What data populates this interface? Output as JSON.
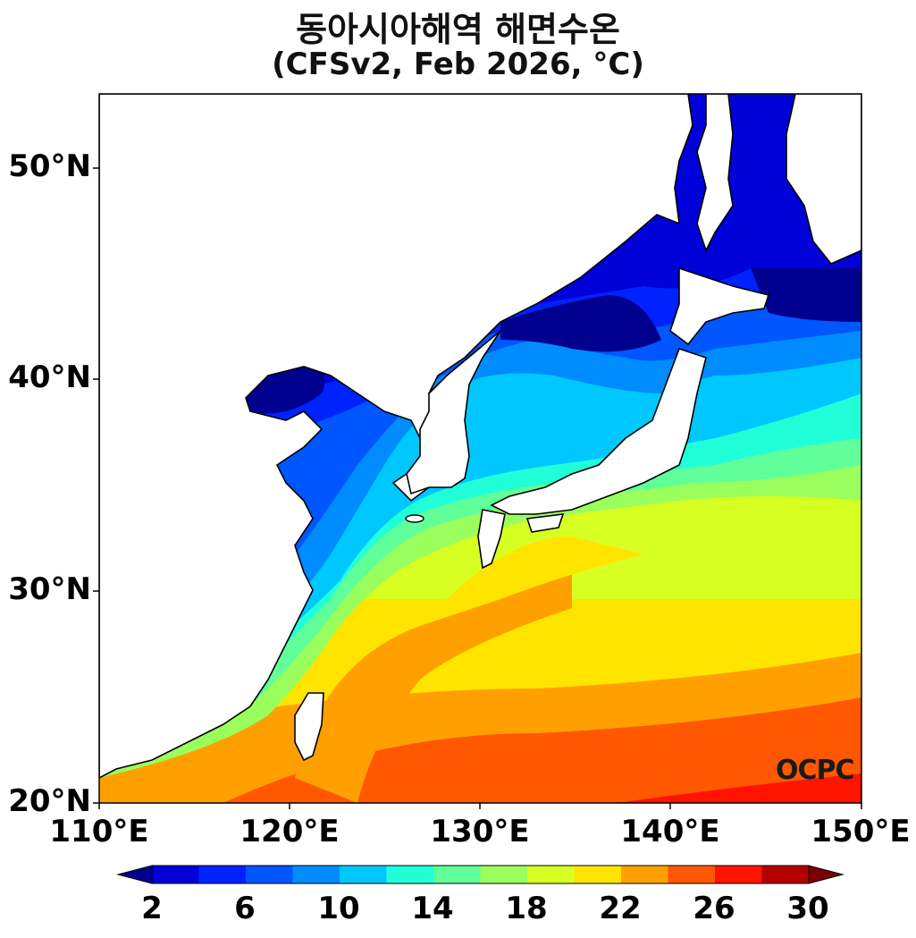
{
  "title": {
    "line1": "동아시아해역 해면수온",
    "line2": "(CFSv2, Feb 2026, °C)"
  },
  "axes": {
    "y_ticks": [
      "50°N",
      "40°N",
      "30°N",
      "20°N"
    ],
    "x_ticks": [
      "110°E",
      "120°E",
      "130°E",
      "140°E",
      "150°E"
    ],
    "lon_range": [
      110,
      150
    ],
    "lat_range": [
      20,
      53.5
    ]
  },
  "colorbar": {
    "tick_labels": [
      "2",
      "6",
      "10",
      "14",
      "18",
      "22",
      "26",
      "30"
    ],
    "levels": [
      2,
      4,
      6,
      8,
      10,
      12,
      14,
      16,
      18,
      20,
      22,
      24,
      26,
      28,
      30
    ],
    "colors": [
      "#00008f",
      "#0000d8",
      "#0022ff",
      "#0057ff",
      "#008cff",
      "#00c8ff",
      "#20ffd8",
      "#60ff9a",
      "#9aff5c",
      "#d8ff22",
      "#ffe400",
      "#ffa000",
      "#ff5800",
      "#ff1400",
      "#b40000",
      "#7a0000"
    ],
    "extend": "both"
  },
  "watermark": "OCPC"
}
